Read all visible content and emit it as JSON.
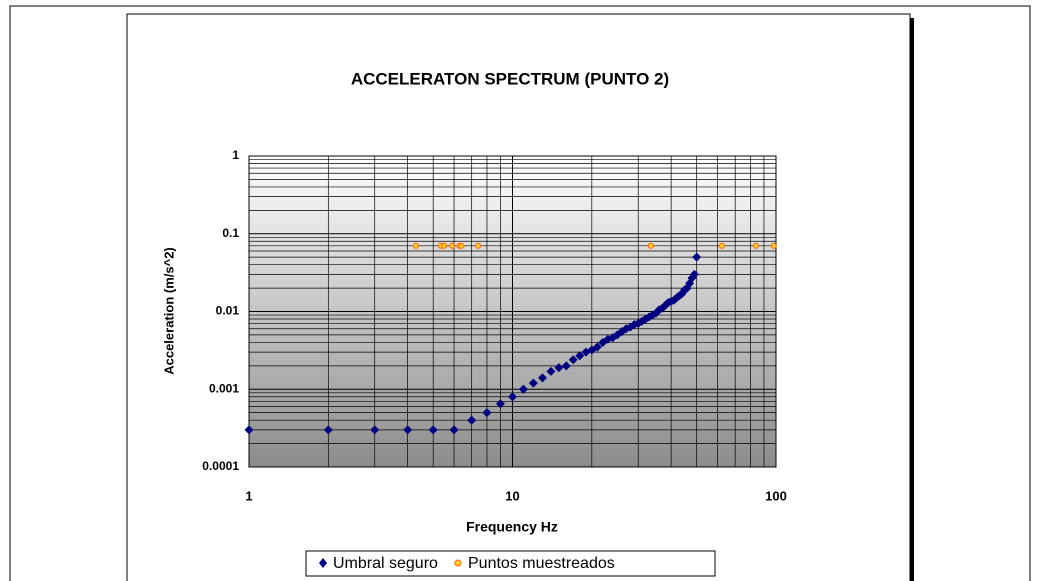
{
  "chart_data": {
    "type": "scatter",
    "title": "ACCELERATON SPECTRUM  (PUNTO 2)",
    "xlabel": "Frequency Hz",
    "ylabel": "Acceleration (m/s^2)",
    "xscale": "log",
    "yscale": "log",
    "xlim": [
      1,
      100
    ],
    "ylim": [
      0.0001,
      1
    ],
    "xticks": [
      1,
      10,
      100
    ],
    "yticks": [
      0.0001,
      0.001,
      0.01,
      0.1,
      1
    ],
    "grid": true,
    "minor_grid": true,
    "legend": "bottom",
    "series": [
      {
        "name": "Umbral seguro",
        "color": "#000080",
        "marker": "diamond",
        "x": [
          1,
          2,
          3,
          4,
          5,
          6,
          7,
          8,
          9,
          10,
          11,
          12,
          13,
          14,
          15,
          16,
          17,
          18,
          19,
          20,
          21,
          22,
          23,
          24,
          25,
          26,
          27,
          28,
          29,
          30,
          31,
          32,
          33,
          34,
          35,
          36,
          37,
          38,
          39,
          40,
          41,
          42,
          43,
          44,
          45,
          46,
          47,
          48,
          49,
          50
        ],
        "values": [
          0.0003,
          0.0003,
          0.0003,
          0.0003,
          0.0003,
          0.0003,
          0.0004,
          0.0005,
          0.00065,
          0.0008,
          0.001,
          0.0012,
          0.0014,
          0.0017,
          0.0019,
          0.002,
          0.0024,
          0.0027,
          0.003,
          0.0032,
          0.0035,
          0.004,
          0.0044,
          0.0046,
          0.005,
          0.0055,
          0.006,
          0.0063,
          0.0068,
          0.007,
          0.0075,
          0.008,
          0.0085,
          0.009,
          0.0095,
          0.0105,
          0.011,
          0.012,
          0.013,
          0.0135,
          0.014,
          0.015,
          0.016,
          0.017,
          0.019,
          0.02,
          0.023,
          0.027,
          0.03,
          0.05
        ]
      },
      {
        "name": "Puntos muestreados",
        "color": "#ff6600",
        "fill": "#ffcc33",
        "marker": "circle",
        "x": [
          4.3,
          5.35,
          5.5,
          5.9,
          6.3,
          6.4,
          7.4,
          33.5,
          62.4,
          84,
          98
        ],
        "values": [
          0.07,
          0.07,
          0.07,
          0.07,
          0.07,
          0.07,
          0.07,
          0.07,
          0.07,
          0.07,
          0.07
        ]
      }
    ]
  }
}
